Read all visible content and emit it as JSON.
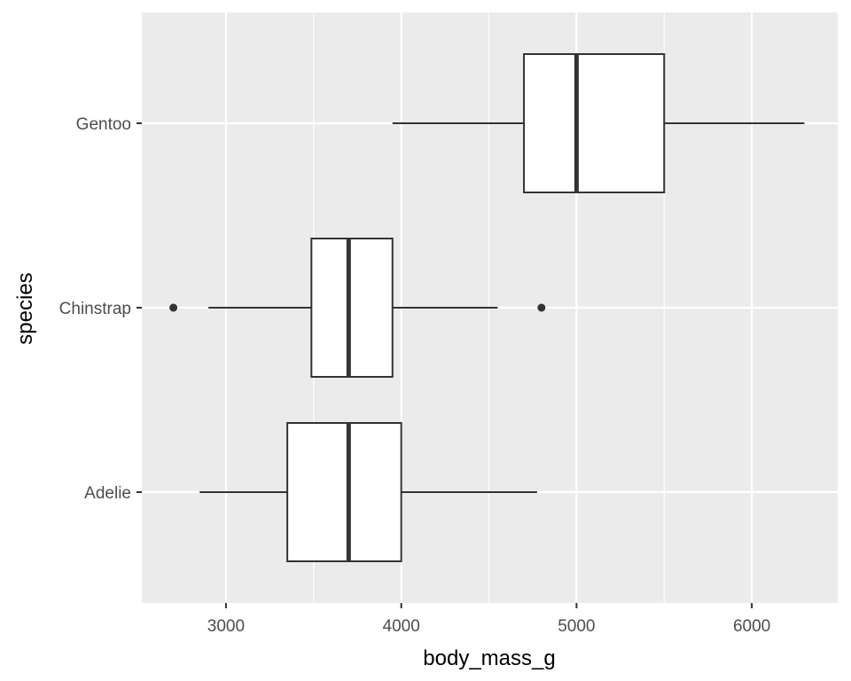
{
  "chart_data": {
    "type": "boxplot",
    "orientation": "horizontal",
    "xlabel": "body_mass_g",
    "ylabel": "species",
    "xlim": [
      2520,
      6490
    ],
    "x_ticks": [
      3000,
      4000,
      5000,
      6000
    ],
    "x_minor_ticks": [
      2500,
      3500,
      4500,
      5500,
      6500
    ],
    "categories": [
      "Adelie",
      "Chinstrap",
      "Gentoo"
    ],
    "boxes": [
      {
        "category": "Adelie",
        "whisker_low": 2850,
        "q1": 3350,
        "median": 3700,
        "q3": 4000,
        "whisker_high": 4775,
        "outliers": []
      },
      {
        "category": "Chinstrap",
        "whisker_low": 2900,
        "q1": 3487.5,
        "median": 3700,
        "q3": 3950,
        "whisker_high": 4550,
        "outliers": [
          2700,
          4800
        ]
      },
      {
        "category": "Gentoo",
        "whisker_low": 3950,
        "q1": 4700,
        "median": 5000,
        "q3": 5500,
        "whisker_high": 6300,
        "outliers": []
      }
    ],
    "grid": true,
    "colors": {
      "panel": "#ebebeb",
      "grid": "#ffffff",
      "box_fill": "#ffffff",
      "stroke": "#333333",
      "tick_label": "#4d4d4d"
    }
  }
}
